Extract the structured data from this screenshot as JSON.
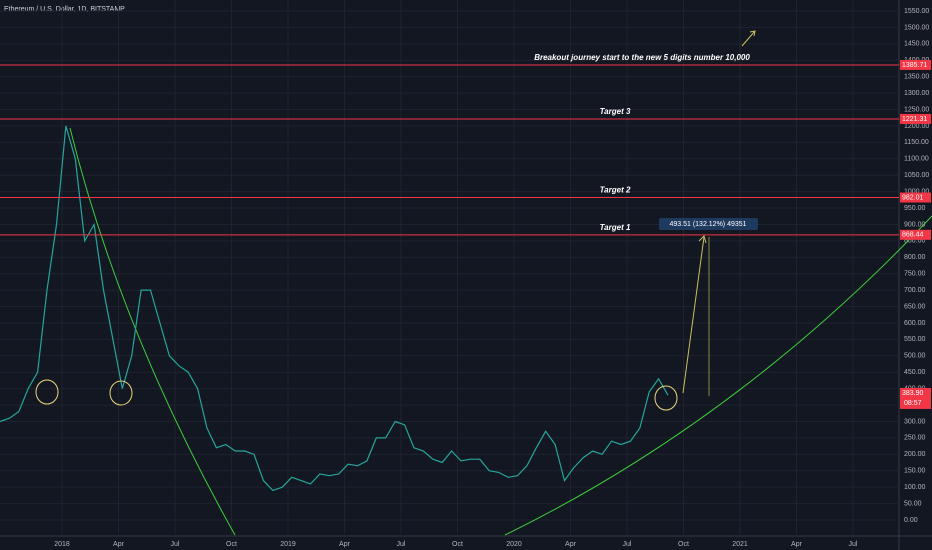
{
  "chart_data": {
    "type": "line",
    "title": "Ethereum / U.S. Dollar, 1D, BITSTAMP",
    "color": "#26a69a",
    "values": [
      300,
      310,
      330,
      400,
      450,
      700,
      900,
      1200,
      1100,
      850,
      900,
      700,
      550,
      400,
      500,
      700,
      700,
      600,
      500,
      470,
      450,
      400,
      280,
      220,
      230,
      210,
      210,
      200,
      120,
      90,
      100,
      130,
      120,
      110,
      140,
      135,
      140,
      170,
      165,
      180,
      250,
      250,
      300,
      290,
      220,
      210,
      185,
      175,
      210,
      180,
      185,
      185,
      150,
      145,
      130,
      135,
      165,
      220,
      270,
      230,
      120,
      160,
      190,
      210,
      200,
      240,
      230,
      240,
      280,
      390,
      430,
      380
    ],
    "ylim": [
      0,
      1550
    ],
    "yticks": [
      {
        "value": 0,
        "label": "0.00"
      },
      {
        "value": 50,
        "label": "50.00"
      },
      {
        "value": 100,
        "label": "100.00"
      },
      {
        "value": 150,
        "label": "150.00"
      },
      {
        "value": 200,
        "label": "200.00"
      },
      {
        "value": 250,
        "label": "250.00"
      },
      {
        "value": 300,
        "label": "300.00"
      },
      {
        "value": 350,
        "label": "350.00"
      },
      {
        "value": 400,
        "label": "400.00"
      },
      {
        "value": 450,
        "label": "450.00"
      },
      {
        "value": 500,
        "label": "500.00"
      },
      {
        "value": 550,
        "label": "550.00"
      },
      {
        "value": 600,
        "label": "600.00"
      },
      {
        "value": 650,
        "label": "650.00"
      },
      {
        "value": 700,
        "label": "700.00"
      },
      {
        "value": 750,
        "label": "750.00"
      },
      {
        "value": 800,
        "label": "800.00"
      },
      {
        "value": 850,
        "label": "850.00"
      },
      {
        "value": 900,
        "label": "900.00"
      },
      {
        "value": 950,
        "label": "950.00"
      },
      {
        "value": 1000,
        "label": "1000.00"
      },
      {
        "value": 1050,
        "label": "1050.00"
      },
      {
        "value": 1100,
        "label": "1100.00"
      },
      {
        "value": 1150,
        "label": "1150.00"
      },
      {
        "value": 1200,
        "label": "1200.00"
      },
      {
        "value": 1250,
        "label": "1250.00"
      },
      {
        "value": 1300,
        "label": "1300.00"
      },
      {
        "value": 1350,
        "label": "1350.00"
      },
      {
        "value": 1400,
        "label": "1400.00"
      },
      {
        "value": 1450,
        "label": "1450.00"
      },
      {
        "value": 1500,
        "label": "1500.00"
      },
      {
        "value": 1550,
        "label": "1550.00"
      }
    ],
    "xticks": [
      "2018",
      "Apr",
      "Jul",
      "Oct",
      "2019",
      "Apr",
      "Jul",
      "Oct",
      "2020",
      "Apr",
      "Jul",
      "Oct",
      "2021",
      "Apr",
      "Jul"
    ],
    "grid": true,
    "levels": [
      {
        "value": 1385.71,
        "annotation": "Breakout journey start to the new 5 digits number 10,000"
      },
      {
        "value": 1221.31,
        "annotation": "Target 3"
      },
      {
        "value": 982.01,
        "annotation": "Target 2"
      },
      {
        "value": 868.44,
        "annotation": "Target 1"
      }
    ],
    "level_color": "#f23645",
    "last_price": {
      "value": 383.9,
      "label": "383.90"
    },
    "countdown": "08:57",
    "measure_label": "493.51 (132.12%) 49351"
  }
}
